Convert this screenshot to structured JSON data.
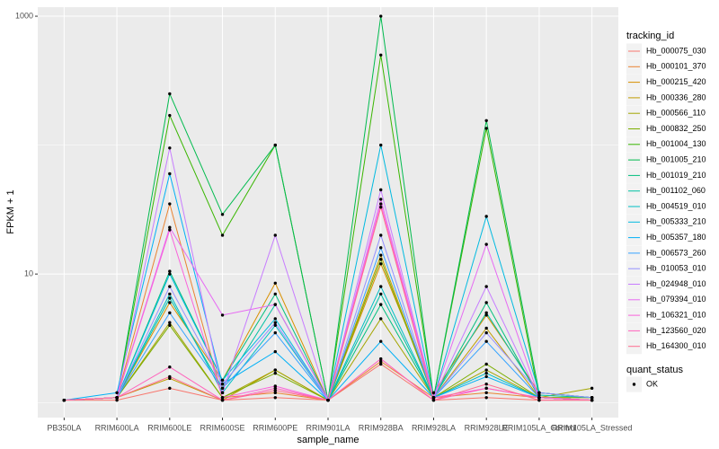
{
  "chart_data": {
    "type": "line",
    "x_label": "sample_name",
    "y_label": "FPKM + 1",
    "categories": [
      "PB350LA",
      "RRIM600LA",
      "RRIM600LE",
      "RRIM600SE",
      "RRIM600PE",
      "RRIM901LA",
      "RRIM928BA",
      "RRIM928LA",
      "RRIM928LE",
      "RRIM105LA_Control",
      "RRIM105LA_Stressed"
    ],
    "log_scale": true,
    "grid": true,
    "ylim": [
      0.77,
      1175
    ],
    "yticks": [
      10,
      1000
    ],
    "legend_title": "tracking_id",
    "point_legend": {
      "title": "quant_status",
      "labels": [
        "OK"
      ],
      "color": "#000000"
    },
    "series": [
      {
        "name": "Hb_000075_030",
        "color": "#F8766D",
        "values": [
          1.05,
          1.05,
          1.3,
          1.05,
          1.1,
          1.05,
          2.0,
          1.05,
          1.1,
          1.05,
          1.05
        ]
      },
      {
        "name": "Hb_000101_370",
        "color": "#EA8331",
        "values": [
          1.05,
          1.1,
          35,
          1.1,
          1.2,
          1.05,
          2.1,
          1.1,
          1.2,
          1.1,
          1.05
        ]
      },
      {
        "name": "Hb_000215_420",
        "color": "#D89000",
        "values": [
          1.05,
          1.1,
          6,
          1.5,
          8.5,
          1.05,
          12,
          1.2,
          4.8,
          1.2,
          1.1
        ]
      },
      {
        "name": "Hb_000336_280",
        "color": "#C09B00",
        "values": [
          1.05,
          1.1,
          1.55,
          1.05,
          1.8,
          1.05,
          14,
          1.1,
          3.8,
          1.1,
          1.1
        ]
      },
      {
        "name": "Hb_000566_110",
        "color": "#A3A500",
        "values": [
          1.05,
          1.1,
          4.2,
          1.1,
          1.8,
          1.05,
          4.5,
          1.1,
          1.8,
          1.1,
          1.3
        ]
      },
      {
        "name": "Hb_000832_250",
        "color": "#7CAE00",
        "values": [
          1.05,
          1.1,
          4.0,
          1.1,
          1.7,
          1.05,
          13,
          1.1,
          2.0,
          1.1,
          1.1
        ]
      },
      {
        "name": "Hb_001004_130",
        "color": "#39B600",
        "values": [
          1.05,
          1.1,
          170,
          20,
          100,
          1.05,
          500,
          1.1,
          135,
          1.1,
          1.05
        ]
      },
      {
        "name": "Hb_001005_210",
        "color": "#00BB4E",
        "values": [
          1.05,
          1.1,
          250,
          29,
          100,
          1.05,
          1000,
          1.1,
          155,
          1.2,
          1.1
        ]
      },
      {
        "name": "Hb_001019_210",
        "color": "#00BF7D",
        "values": [
          1.05,
          1.1,
          10.5,
          1.5,
          7,
          1.05,
          5.8,
          1.1,
          6,
          1.1,
          1.05
        ]
      },
      {
        "name": "Hb_001102_060",
        "color": "#00C1A3",
        "values": [
          1.05,
          1.1,
          6.5,
          1.3,
          5.8,
          1.05,
          7,
          1.1,
          5,
          1.15,
          1.1
        ]
      },
      {
        "name": "Hb_004519_010",
        "color": "#00BFC4",
        "values": [
          1.05,
          1.1,
          7,
          1.2,
          4,
          1.05,
          8,
          1.1,
          1.7,
          1.1,
          1.05
        ]
      },
      {
        "name": "Hb_005333_210",
        "color": "#00BAE0",
        "values": [
          1.05,
          1.1,
          10,
          1.5,
          4.5,
          1.05,
          100,
          1.1,
          28,
          1.2,
          1.1
        ]
      },
      {
        "name": "Hb_005357_180",
        "color": "#00B0F6",
        "values": [
          1.05,
          1.2,
          60,
          1.4,
          2.5,
          1.05,
          3.0,
          1.1,
          1.6,
          1.1,
          1.05
        ]
      },
      {
        "name": "Hb_006573_260",
        "color": "#35A2FF",
        "values": [
          1.05,
          1.1,
          5,
          1.3,
          3.5,
          1.05,
          16,
          1.1,
          3,
          1.1,
          1.05
        ]
      },
      {
        "name": "Hb_010053_010",
        "color": "#9590FF",
        "values": [
          1.05,
          1.1,
          8,
          1.4,
          4.2,
          1.05,
          20,
          1.1,
          3.5,
          1.2,
          1.1
        ]
      },
      {
        "name": "Hb_024948_010",
        "color": "#C77CFF",
        "values": [
          1.05,
          1.1,
          95,
          1.2,
          20,
          1.05,
          45,
          1.1,
          8,
          1.1,
          1.05
        ]
      },
      {
        "name": "Hb_079394_010",
        "color": "#E76BF3",
        "values": [
          1.05,
          1.1,
          23,
          4.8,
          5.8,
          1.05,
          38,
          1.1,
          17,
          1.1,
          1.05
        ]
      },
      {
        "name": "Hb_106321_010",
        "color": "#FA62DB",
        "values": [
          1.05,
          1.1,
          22,
          1.1,
          1.35,
          1.05,
          35,
          1.1,
          1.3,
          1.1,
          1.05
        ]
      },
      {
        "name": "Hb_123560_020",
        "color": "#FF62BC",
        "values": [
          1.05,
          1.1,
          1.9,
          1.05,
          1.3,
          1.05,
          2.2,
          1.05,
          1.3,
          1.1,
          1.05
        ]
      },
      {
        "name": "Hb_164300_010",
        "color": "#FF6C91",
        "values": [
          1.05,
          1.1,
          1.6,
          1.05,
          1.25,
          1.05,
          33,
          1.05,
          1.4,
          1.05,
          1.05
        ]
      }
    ]
  }
}
